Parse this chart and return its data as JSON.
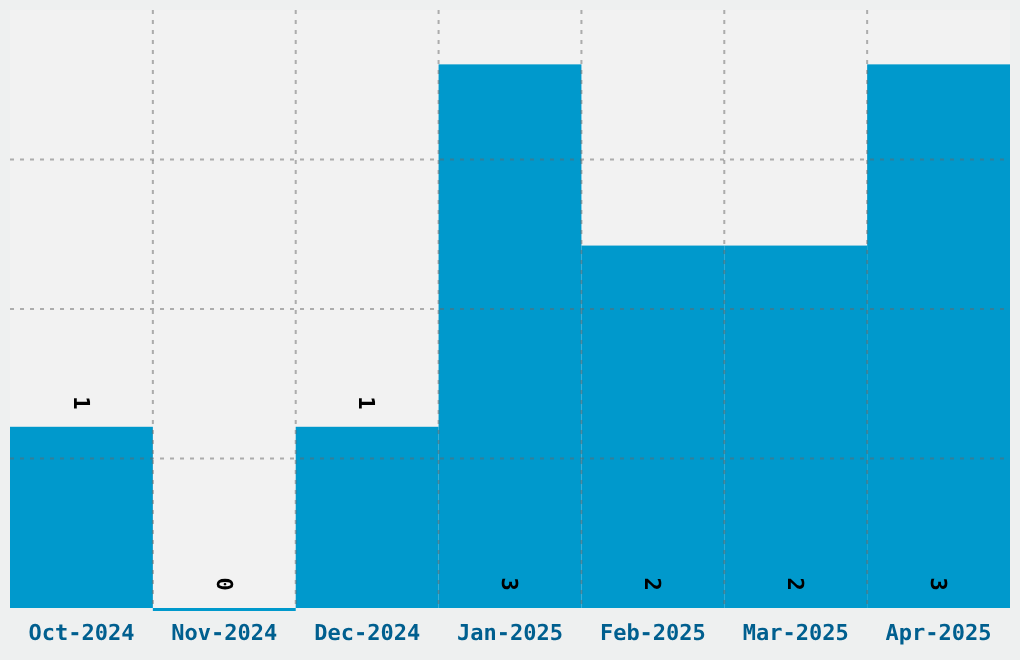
{
  "chart_data": {
    "type": "bar",
    "categories": [
      "Oct-2024",
      "Nov-2024",
      "Dec-2024",
      "Jan-2025",
      "Feb-2025",
      "Mar-2025",
      "Apr-2025"
    ],
    "values": [
      1,
      0,
      1,
      3,
      2,
      2,
      3
    ],
    "color": "#0099cc",
    "ylim": [
      0,
      3.3
    ],
    "yticks": [
      {
        "value": 0.825,
        "label": null
      },
      {
        "value": 1.65,
        "label": null
      },
      {
        "value": 2.475,
        "label": null
      }
    ],
    "tick_labels": "x",
    "grid": true,
    "data_labels": true
  }
}
